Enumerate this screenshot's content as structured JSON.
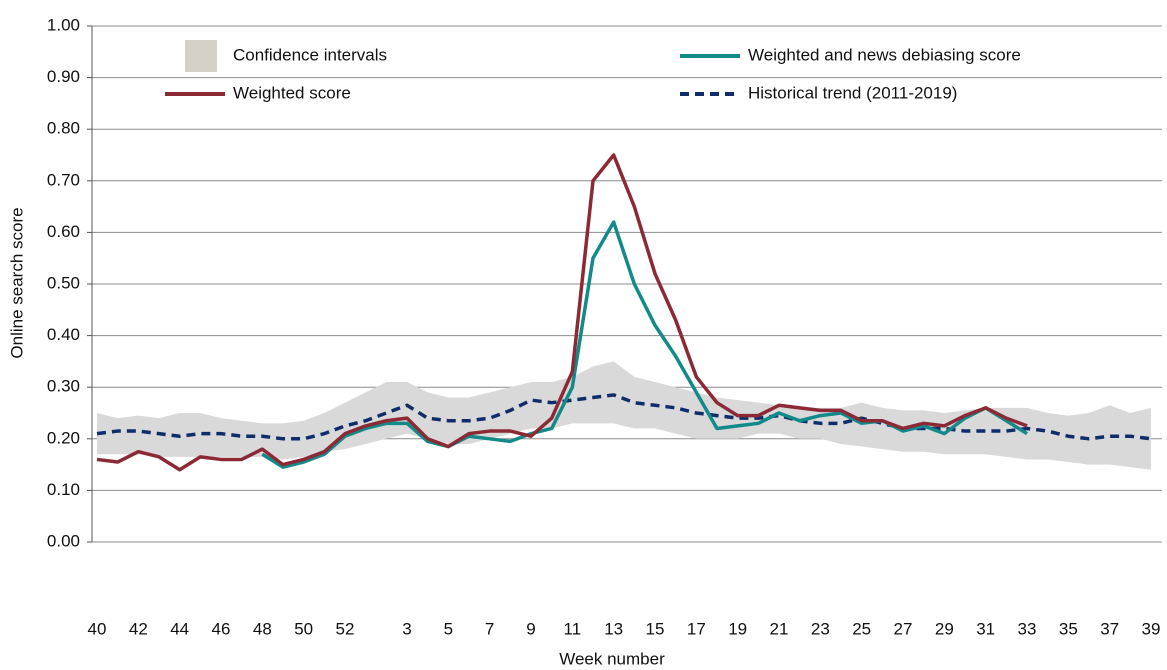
{
  "chart_data": {
    "type": "line",
    "x_label": "Week number",
    "y_label": "Online search score",
    "categories": [
      "40",
      null,
      "42",
      null,
      "44",
      null,
      "46",
      null,
      "48",
      null,
      "50",
      null,
      "52",
      null,
      null,
      "3",
      null,
      "5",
      null,
      "7",
      null,
      "9",
      null,
      "11",
      null,
      "13",
      null,
      "15",
      null,
      "17",
      null,
      "19",
      null,
      "21",
      null,
      "23",
      null,
      "25",
      null,
      "27",
      null,
      "29",
      null,
      "31",
      null,
      "33",
      null,
      "35",
      null,
      "37",
      null,
      "39"
    ],
    "ylim": [
      0,
      1
    ],
    "yticks": [
      {
        "value": 0,
        "label": "0.00"
      },
      {
        "value": 0.1,
        "label": "0.10"
      },
      {
        "value": 0.2,
        "label": "0.20"
      },
      {
        "value": 0.3,
        "label": "0.30"
      },
      {
        "value": 0.4,
        "label": "0.40"
      },
      {
        "value": 0.5,
        "label": "0.50"
      },
      {
        "value": 0.6,
        "label": "0.60"
      },
      {
        "value": 0.7,
        "label": "0.70"
      },
      {
        "value": 0.8,
        "label": "0.80"
      },
      {
        "value": 0.9,
        "label": "0.90"
      },
      {
        "value": 1,
        "label": "1.00"
      }
    ],
    "grid": true,
    "series": [
      {
        "name": "Confidence intervals",
        "type": "band",
        "color": "#d9d9d9",
        "upper": [
          0.25,
          0.24,
          0.245,
          0.24,
          0.25,
          0.25,
          0.24,
          0.235,
          0.23,
          0.23,
          0.235,
          0.25,
          0.27,
          0.29,
          0.31,
          0.31,
          0.29,
          0.28,
          0.28,
          0.29,
          0.3,
          0.31,
          0.31,
          0.32,
          0.34,
          0.35,
          0.32,
          0.31,
          0.3,
          0.29,
          0.28,
          0.275,
          0.27,
          0.265,
          0.26,
          0.26,
          0.26,
          0.27,
          0.26,
          0.255,
          0.255,
          0.25,
          0.255,
          0.26,
          0.26,
          0.26,
          0.25,
          0.245,
          0.25,
          0.265,
          0.25,
          0.26
        ],
        "lower": [
          0.17,
          0.17,
          0.17,
          0.165,
          0.165,
          0.165,
          0.165,
          0.165,
          0.165,
          0.16,
          0.165,
          0.175,
          0.18,
          0.19,
          0.2,
          0.21,
          0.2,
          0.19,
          0.19,
          0.2,
          0.21,
          0.22,
          0.22,
          0.23,
          0.23,
          0.23,
          0.22,
          0.22,
          0.21,
          0.2,
          0.2,
          0.2,
          0.21,
          0.21,
          0.2,
          0.2,
          0.19,
          0.185,
          0.18,
          0.175,
          0.175,
          0.17,
          0.17,
          0.17,
          0.165,
          0.16,
          0.16,
          0.155,
          0.15,
          0.15,
          0.145,
          0.14
        ]
      },
      {
        "name": "Historical trend (2011-2019)",
        "type": "line",
        "dashed": true,
        "color": "#0f2d6b",
        "values": [
          0.21,
          0.215,
          0.215,
          0.21,
          0.205,
          0.21,
          0.21,
          0.205,
          0.205,
          0.2,
          0.2,
          0.21,
          0.225,
          0.235,
          0.25,
          0.265,
          0.24,
          0.235,
          0.235,
          0.24,
          0.255,
          0.275,
          0.27,
          0.275,
          0.28,
          0.285,
          0.27,
          0.265,
          0.26,
          0.25,
          0.245,
          0.24,
          0.24,
          0.245,
          0.235,
          0.23,
          0.23,
          0.24,
          0.23,
          0.22,
          0.22,
          0.22,
          0.215,
          0.215,
          0.215,
          0.22,
          0.215,
          0.205,
          0.2,
          0.205,
          0.205,
          0.2
        ]
      },
      {
        "name": "Weighted and news debiasing score",
        "type": "line",
        "color": "#138a8a",
        "values": [
          null,
          null,
          null,
          null,
          null,
          null,
          null,
          null,
          0.17,
          0.145,
          0.155,
          0.17,
          0.205,
          0.22,
          0.23,
          0.23,
          0.195,
          0.185,
          0.205,
          0.2,
          0.195,
          0.21,
          0.22,
          0.3,
          0.55,
          0.62,
          0.5,
          0.42,
          0.36,
          0.29,
          0.22,
          0.225,
          0.23,
          0.25,
          0.235,
          0.245,
          0.25,
          0.23,
          0.235,
          0.215,
          0.225,
          0.21,
          0.24,
          0.26,
          0.235,
          0.21,
          null,
          null,
          null,
          null,
          null,
          null
        ]
      },
      {
        "name": "Weighted score",
        "type": "line",
        "color": "#8b2a35",
        "values": [
          0.16,
          0.155,
          0.175,
          0.165,
          0.14,
          0.165,
          0.16,
          0.16,
          0.18,
          0.15,
          0.16,
          0.175,
          0.21,
          0.225,
          0.235,
          0.24,
          0.2,
          0.185,
          0.21,
          0.215,
          0.215,
          0.205,
          0.24,
          0.33,
          0.7,
          0.75,
          0.65,
          0.52,
          0.43,
          0.32,
          0.27,
          0.245,
          0.245,
          0.265,
          0.26,
          0.255,
          0.255,
          0.235,
          0.235,
          0.22,
          0.23,
          0.225,
          0.245,
          0.26,
          0.24,
          0.225,
          null,
          null,
          null,
          null,
          null,
          null
        ]
      }
    ]
  }
}
